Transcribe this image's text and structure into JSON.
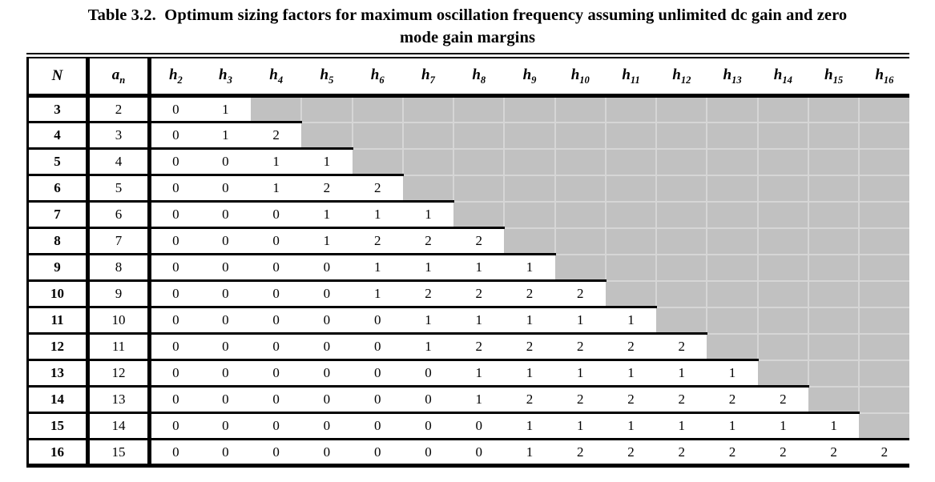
{
  "caption": {
    "line1": "Table 3.2.  Optimum sizing factors for maximum oscillation frequency assuming unlimited dc gain and zero",
    "line2": "mode gain margins"
  },
  "table": {
    "header": {
      "n_label": "N",
      "a_label": {
        "base": "a",
        "sub": "n"
      },
      "h_columns": [
        {
          "base": "h",
          "sub": "2"
        },
        {
          "base": "h",
          "sub": "3"
        },
        {
          "base": "h",
          "sub": "4"
        },
        {
          "base": "h",
          "sub": "5"
        },
        {
          "base": "h",
          "sub": "6"
        },
        {
          "base": "h",
          "sub": "7"
        },
        {
          "base": "h",
          "sub": "8"
        },
        {
          "base": "h",
          "sub": "9"
        },
        {
          "base": "h",
          "sub": "10"
        },
        {
          "base": "h",
          "sub": "11"
        },
        {
          "base": "h",
          "sub": "12"
        },
        {
          "base": "h",
          "sub": "13"
        },
        {
          "base": "h",
          "sub": "14"
        },
        {
          "base": "h",
          "sub": "15"
        },
        {
          "base": "h",
          "sub": "16"
        }
      ]
    },
    "rows": [
      {
        "N": "3",
        "a_n": "2",
        "h": [
          "0",
          "1"
        ]
      },
      {
        "N": "4",
        "a_n": "3",
        "h": [
          "0",
          "1",
          "2"
        ]
      },
      {
        "N": "5",
        "a_n": "4",
        "h": [
          "0",
          "0",
          "1",
          "1"
        ]
      },
      {
        "N": "6",
        "a_n": "5",
        "h": [
          "0",
          "0",
          "1",
          "2",
          "2"
        ]
      },
      {
        "N": "7",
        "a_n": "6",
        "h": [
          "0",
          "0",
          "0",
          "1",
          "1",
          "1"
        ]
      },
      {
        "N": "8",
        "a_n": "7",
        "h": [
          "0",
          "0",
          "0",
          "1",
          "2",
          "2",
          "2"
        ]
      },
      {
        "N": "9",
        "a_n": "8",
        "h": [
          "0",
          "0",
          "0",
          "0",
          "1",
          "1",
          "1",
          "1"
        ]
      },
      {
        "N": "10",
        "a_n": "9",
        "h": [
          "0",
          "0",
          "0",
          "0",
          "1",
          "2",
          "2",
          "2",
          "2"
        ]
      },
      {
        "N": "11",
        "a_n": "10",
        "h": [
          "0",
          "0",
          "0",
          "0",
          "0",
          "1",
          "1",
          "1",
          "1",
          "1"
        ]
      },
      {
        "N": "12",
        "a_n": "11",
        "h": [
          "0",
          "0",
          "0",
          "0",
          "0",
          "1",
          "2",
          "2",
          "2",
          "2",
          "2"
        ]
      },
      {
        "N": "13",
        "a_n": "12",
        "h": [
          "0",
          "0",
          "0",
          "0",
          "0",
          "0",
          "1",
          "1",
          "1",
          "1",
          "1",
          "1"
        ]
      },
      {
        "N": "14",
        "a_n": "13",
        "h": [
          "0",
          "0",
          "0",
          "0",
          "0",
          "0",
          "1",
          "2",
          "2",
          "2",
          "2",
          "2",
          "2"
        ]
      },
      {
        "N": "15",
        "a_n": "14",
        "h": [
          "0",
          "0",
          "0",
          "0",
          "0",
          "0",
          "0",
          "1",
          "1",
          "1",
          "1",
          "1",
          "1",
          "1"
        ]
      },
      {
        "N": "16",
        "a_n": "15",
        "h": [
          "0",
          "0",
          "0",
          "0",
          "0",
          "0",
          "0",
          "1",
          "2",
          "2",
          "2",
          "2",
          "2",
          "2",
          "2"
        ]
      }
    ]
  },
  "colors": {
    "background": "#ffffff",
    "text": "#000000",
    "border": "#000000",
    "shaded_cell": "#c1c1c1",
    "shade_highlight": "#d6d6d6"
  }
}
